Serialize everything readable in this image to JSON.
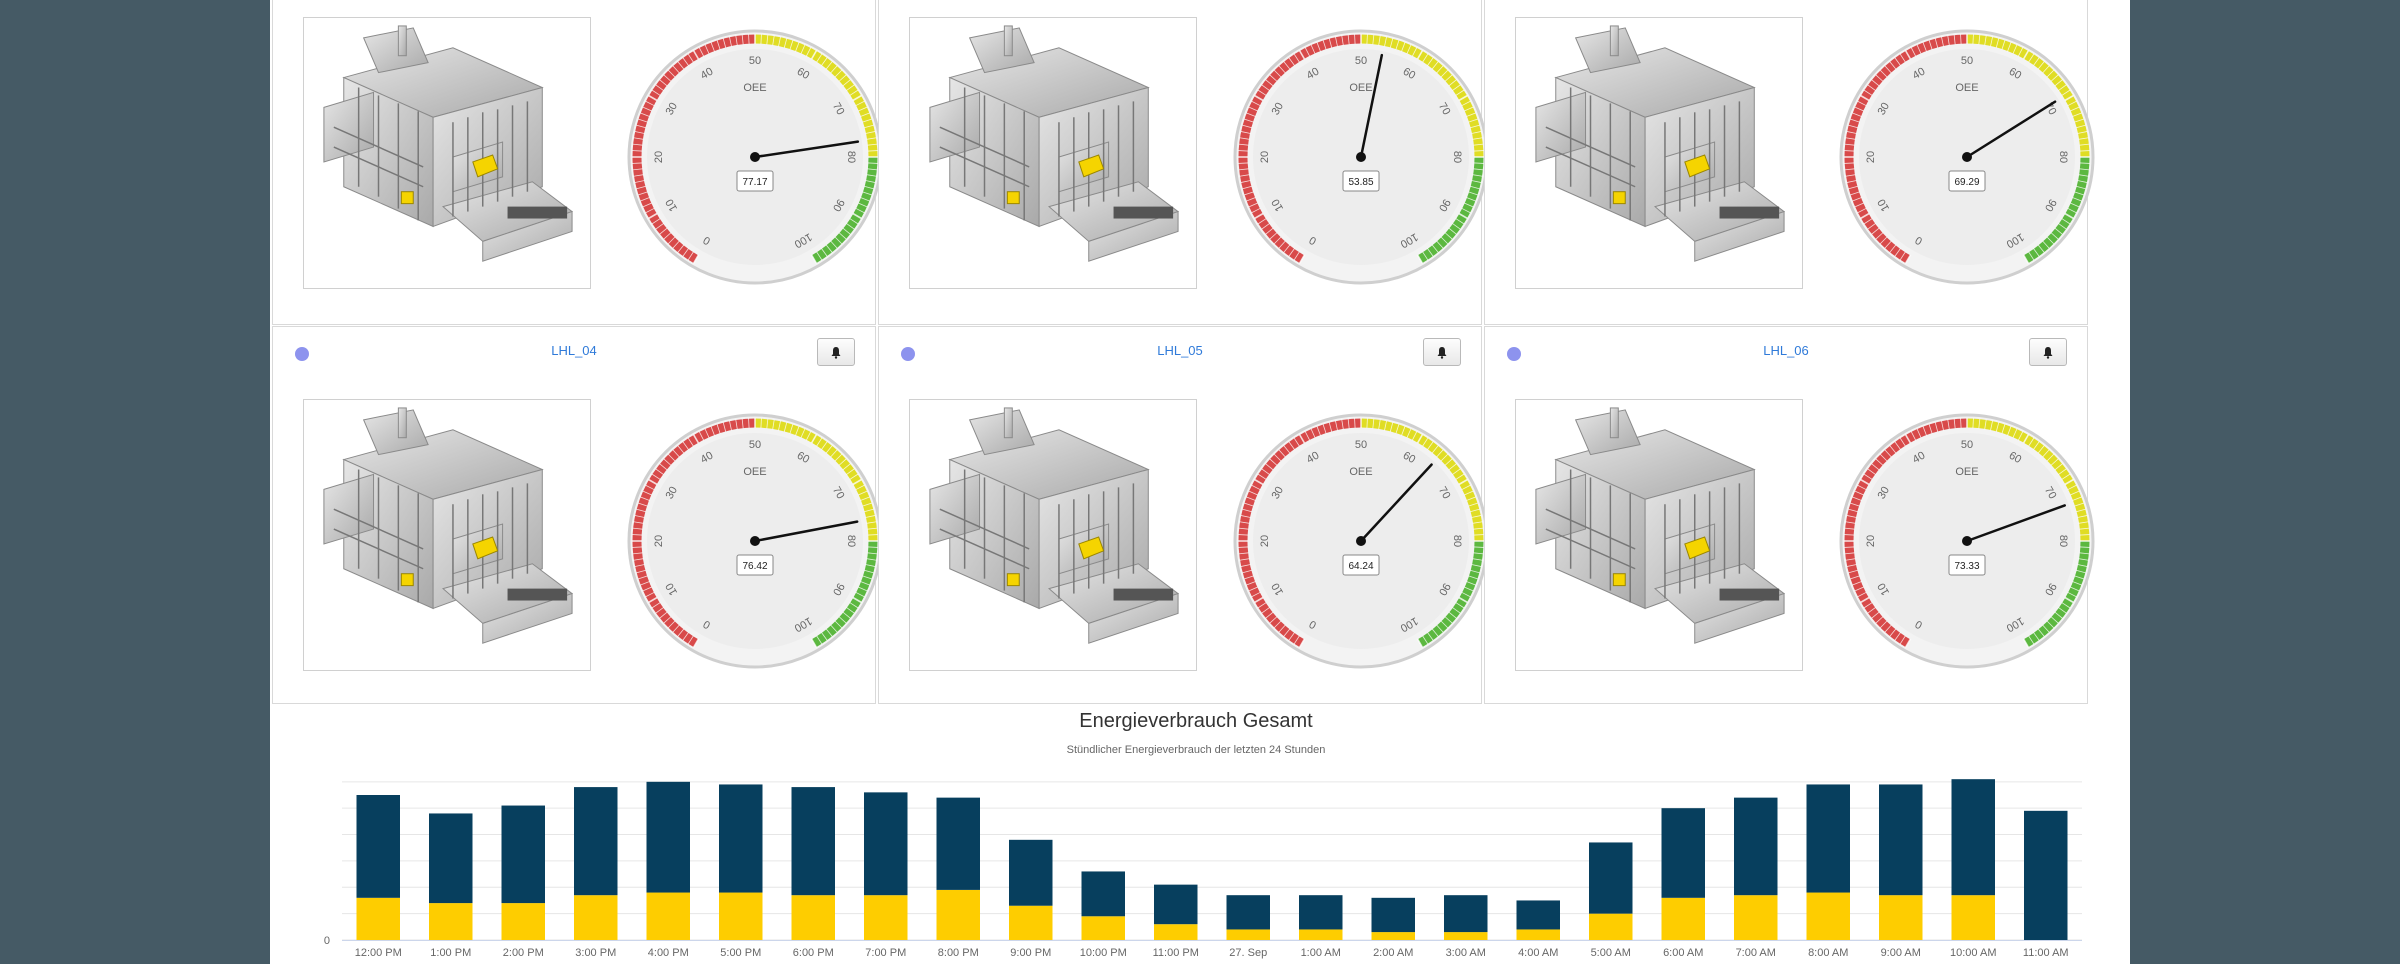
{
  "colors": {
    "bar_top": "#073f5e",
    "bar_bottom": "#fecd00",
    "gauge_red": "#d84a4a",
    "gauge_yellow": "#e0dd24",
    "gauge_green": "#5cb840",
    "link": "#2f7ad9",
    "status_dot": "#8d93ee"
  },
  "gauge_ticks": [
    "0",
    "10",
    "20",
    "30",
    "40",
    "50",
    "60",
    "70",
    "80",
    "90",
    "100"
  ],
  "panels": [
    {
      "title": "",
      "gauge": {
        "label": "OEE",
        "value": 77.17,
        "display": "77.17"
      }
    },
    {
      "title": "",
      "gauge": {
        "label": "OEE",
        "value": 53.85,
        "display": "53.85"
      }
    },
    {
      "title": "",
      "gauge": {
        "label": "OEE",
        "value": 69.29,
        "display": "69.29"
      }
    },
    {
      "title": "LHL_04",
      "alarm_icon": "bell-icon",
      "gauge": {
        "label": "OEE",
        "value": 76.42,
        "display": "76.42"
      }
    },
    {
      "title": "LHL_05",
      "alarm_icon": "bell-icon",
      "gauge": {
        "label": "OEE",
        "value": 64.24,
        "display": "64.24"
      }
    },
    {
      "title": "LHL_06",
      "alarm_icon": "bell-icon",
      "gauge": {
        "label": "OEE",
        "value": 73.33,
        "display": "73.33"
      }
    }
  ],
  "chart": {
    "title": "Energieverbrauch Gesamt",
    "subtitle": "Stündlicher Energieverbrauch der letzten 24 Stunden"
  },
  "chart_data": {
    "type": "bar",
    "stacked": true,
    "title": "Energieverbrauch Gesamt",
    "subtitle": "Stündlicher Energieverbrauch der letzten 24 Stunden",
    "categories": [
      "12:00 PM",
      "1:00 PM",
      "2:00 PM",
      "3:00 PM",
      "4:00 PM",
      "5:00 PM",
      "6:00 PM",
      "7:00 PM",
      "8:00 PM",
      "9:00 PM",
      "10:00 PM",
      "11:00 PM",
      "27. Sep",
      "1:00 AM",
      "2:00 AM",
      "3:00 AM",
      "4:00 AM",
      "5:00 AM",
      "6:00 AM",
      "7:00 AM",
      "8:00 AM",
      "9:00 AM",
      "10:00 AM",
      "11:00 AM"
    ],
    "series": [
      {
        "color": "#fecd00",
        "values": [
          0.8,
          0.7,
          0.7,
          0.85,
          0.9,
          0.9,
          0.85,
          0.85,
          0.95,
          0.65,
          0.45,
          0.3,
          0.2,
          0.2,
          0.15,
          0.15,
          0.2,
          0.5,
          0.8,
          0.85,
          0.9,
          0.85,
          0.85,
          0.0
        ]
      },
      {
        "color": "#073f5e",
        "values": [
          1.95,
          1.7,
          1.85,
          2.05,
          2.1,
          2.05,
          2.05,
          1.95,
          1.75,
          1.25,
          0.85,
          0.75,
          0.65,
          0.65,
          0.65,
          0.7,
          0.55,
          1.35,
          1.7,
          1.85,
          2.05,
          2.1,
          2.2,
          2.45
        ]
      }
    ],
    "yticks": [
      "0"
    ],
    "ylim": [
      0,
      3.3
    ],
    "grid": true
  }
}
